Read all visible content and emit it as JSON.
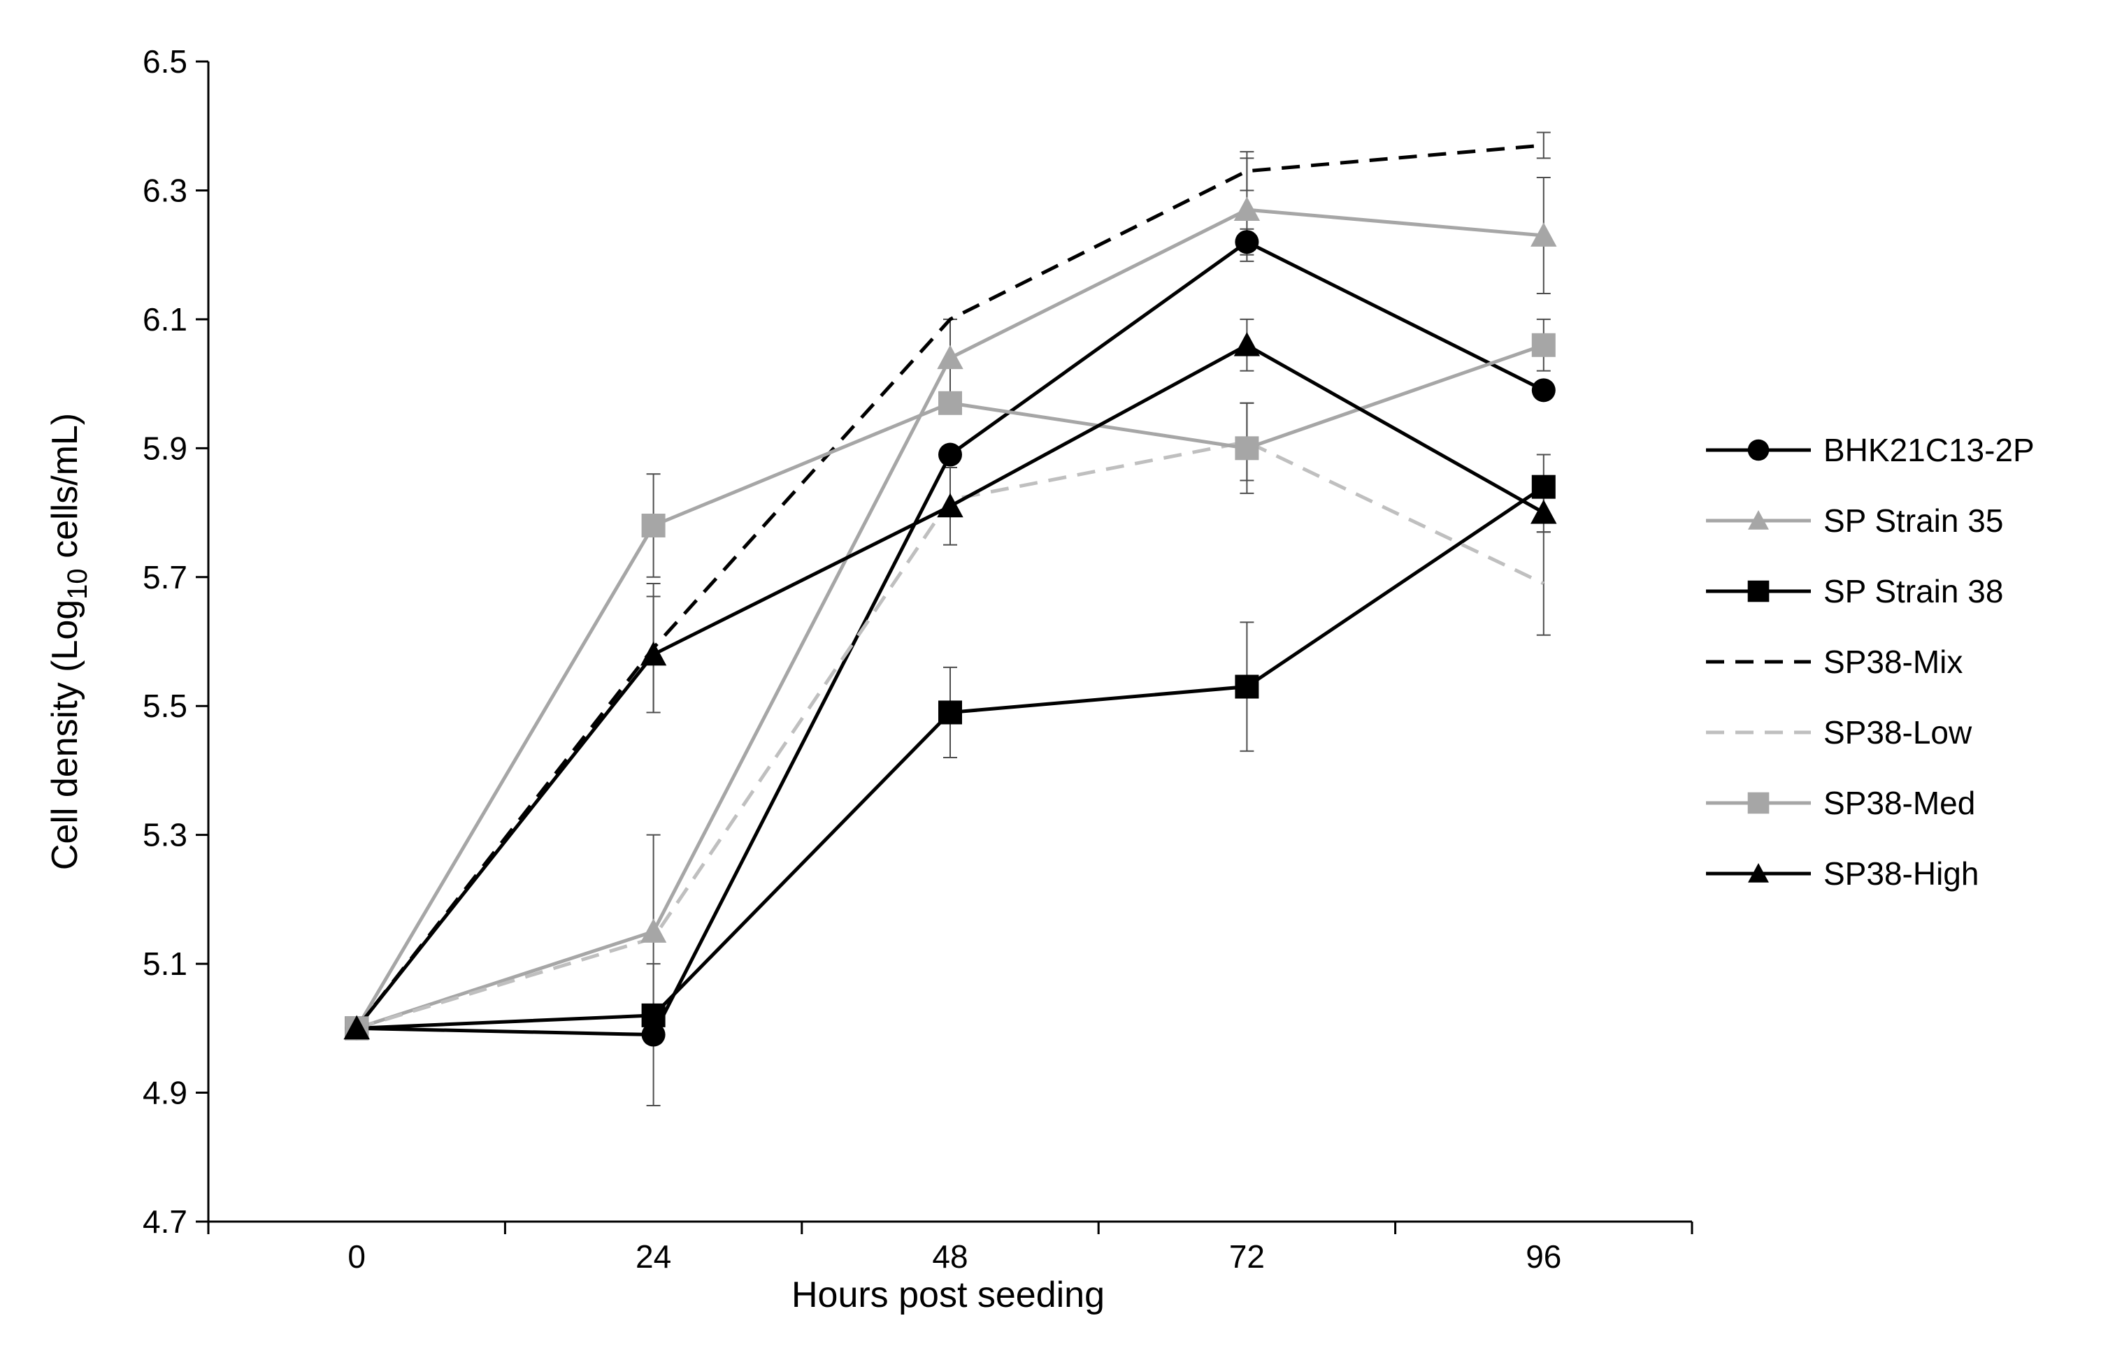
{
  "chart_data": {
    "type": "line",
    "title": "",
    "xlabel": "Hours post seeding",
    "ylabel_main": "Cell density (Log",
    "ylabel_sub": "10",
    "ylabel_tail": " cells/mL)",
    "x": [
      0,
      24,
      48,
      72,
      96
    ],
    "x_tick_labels": [
      "0",
      "24",
      "48",
      "72",
      "96"
    ],
    "xlim": [
      -12,
      108
    ],
    "ylim": [
      4.7,
      6.5
    ],
    "y_ticks": [
      4.7,
      4.9,
      5.1,
      5.3,
      5.5,
      5.7,
      5.9,
      6.1,
      6.3,
      6.5
    ],
    "y_tick_labels": [
      "4.7",
      "4.9",
      "5.1",
      "5.3",
      "5.5",
      "5.7",
      "5.9",
      "6.1",
      "6.3",
      "6.5"
    ],
    "grid": false,
    "legend_position": "right",
    "series": [
      {
        "name": "BHK21C13-2P",
        "color": "#000000",
        "dash": "solid",
        "marker": "circle",
        "values": [
          5.0,
          4.99,
          5.89,
          6.22,
          5.99
        ],
        "errors": [
          0,
          0.11,
          0.0,
          0.02,
          0.0
        ]
      },
      {
        "name": "SP Strain 35",
        "color": "#a6a6a6",
        "dash": "solid",
        "marker": "triangle",
        "values": [
          5.0,
          5.15,
          6.04,
          6.27,
          6.23
        ],
        "errors": [
          0,
          0.15,
          0.06,
          0.08,
          0.09
        ]
      },
      {
        "name": "SP Strain 38",
        "color": "#000000",
        "dash": "solid",
        "marker": "square",
        "values": [
          5.0,
          5.02,
          5.49,
          5.53,
          5.84
        ],
        "errors": [
          0,
          0.0,
          0.07,
          0.1,
          0.05
        ]
      },
      {
        "name": "SP38-Mix",
        "color": "#000000",
        "dash": "dashed",
        "marker": "none",
        "values": [
          5.0,
          5.59,
          6.1,
          6.33,
          6.37
        ],
        "errors": [
          0,
          0.1,
          0.0,
          0.03,
          0.02
        ]
      },
      {
        "name": "SP38-Low",
        "color": "#bfbfbf",
        "dash": "dashed",
        "marker": "none",
        "values": [
          5.0,
          5.14,
          5.82,
          5.91,
          5.69
        ],
        "errors": [
          0,
          0.0,
          0.0,
          0.06,
          0.08
        ]
      },
      {
        "name": "SP38-Med",
        "color": "#a6a6a6",
        "dash": "solid",
        "marker": "square",
        "values": [
          5.0,
          5.78,
          5.97,
          5.9,
          6.06
        ],
        "errors": [
          0,
          0.08,
          0.0,
          0.07,
          0.04
        ]
      },
      {
        "name": "SP38-High",
        "color": "#000000",
        "dash": "solid",
        "marker": "triangle",
        "values": [
          5.0,
          5.58,
          5.81,
          6.06,
          5.8
        ],
        "errors": [
          0,
          0.09,
          0.06,
          0.04,
          0.03
        ]
      }
    ]
  }
}
